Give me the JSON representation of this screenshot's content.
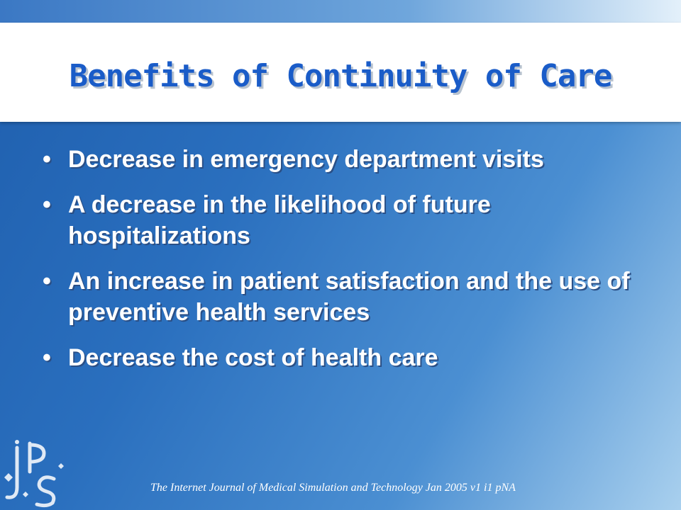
{
  "slide": {
    "title": "Benefits of Continuity of Care",
    "bullet_symbol": "•",
    "bullets": [
      "Decrease in emergency department visits",
      "A decrease in the likelihood of future hospitalizations",
      "An increase in patient satisfaction and the use of preventive health services",
      "Decrease the cost of health care"
    ],
    "footer": "The Internet Journal of Medical Simulation and Technology  Jan 2005 v1 i1 pNA",
    "logo_icon": "jps-logo-icon"
  },
  "colors": {
    "title": "#1a5cc8",
    "background": "#2a6fbe",
    "bullet_text": "#ffffff"
  }
}
